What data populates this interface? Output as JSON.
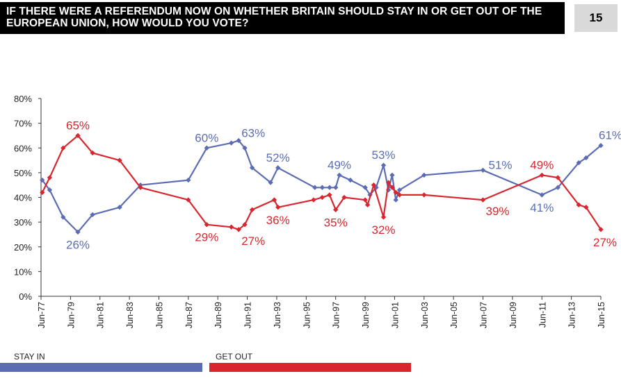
{
  "header": {
    "title": "IF THERE WERE A REFERENDUM NOW ON WHETHER BRITAIN SHOULD STAY IN OR GET OUT OF THE EUROPEAN UNION, HOW WOULD YOU VOTE?",
    "page_number": "15"
  },
  "legend": {
    "stay_in": "STAY IN",
    "get_out": "GET OUT"
  },
  "colors": {
    "stay_in": "#5b6cb4",
    "get_out": "#d9262e"
  },
  "chart_data": {
    "type": "line",
    "y_ticks": [
      "0%",
      "10%",
      "20%",
      "30%",
      "40%",
      "50%",
      "60%",
      "70%",
      "80%"
    ],
    "ylim": [
      0,
      80
    ],
    "x_ticks": [
      "Jun-77",
      "Jun-79",
      "Jun-81",
      "Jun-83",
      "Jun-85",
      "Jun-87",
      "Jun-89",
      "Jun-91",
      "Jun-93",
      "Jun-95",
      "Jun-97",
      "Jun-99",
      "Jun-01",
      "Jun-03",
      "Jun-05",
      "Jun-07",
      "Jun-09",
      "Jun-11",
      "Jun-13",
      "Jun-15"
    ],
    "xlim": [
      "1977-06",
      "2015-06"
    ],
    "grid": false,
    "legend_position": "bottom",
    "series": [
      {
        "name": "STAY IN",
        "points": [
          [
            "1977-07",
            47
          ],
          [
            "1978-01",
            43
          ],
          [
            "1978-12",
            32
          ],
          [
            "1979-12",
            26
          ],
          [
            "1980-12",
            33
          ],
          [
            "1982-10",
            36
          ],
          [
            "1984-03",
            45
          ],
          [
            "1987-06",
            47
          ],
          [
            "1988-09",
            60
          ],
          [
            "1990-05",
            62
          ],
          [
            "1990-11",
            63
          ],
          [
            "1991-04",
            60
          ],
          [
            "1991-10",
            52
          ],
          [
            "1993-01",
            46
          ],
          [
            "1993-07",
            52
          ],
          [
            "1996-01",
            44
          ],
          [
            "1996-07",
            44
          ],
          [
            "1997-01",
            44
          ],
          [
            "1997-06",
            44
          ],
          [
            "1997-09",
            49
          ],
          [
            "1998-06",
            47
          ],
          [
            "1999-06",
            44
          ],
          [
            "1999-10",
            41
          ],
          [
            "2000-03",
            44
          ],
          [
            "2000-09",
            53
          ],
          [
            "2001-01",
            43
          ],
          [
            "2001-04",
            49
          ],
          [
            "2001-07",
            39
          ],
          [
            "2001-10",
            43
          ],
          [
            "2003-06",
            49
          ],
          [
            "2007-06",
            51
          ],
          [
            "2011-06",
            41
          ],
          [
            "2012-07",
            44
          ],
          [
            "2013-12",
            54
          ],
          [
            "2014-06",
            56
          ],
          [
            "2015-06",
            61
          ]
        ],
        "labels": [
          {
            "date": "1979-12",
            "text": "26%",
            "pos": "below"
          },
          {
            "date": "1988-09",
            "text": "60%",
            "pos": "above"
          },
          {
            "date": "1990-11",
            "text": "63%",
            "pos": "above-right"
          },
          {
            "date": "1993-07",
            "text": "52%",
            "pos": "above"
          },
          {
            "date": "1997-09",
            "text": "49%",
            "pos": "above"
          },
          {
            "date": "2000-09",
            "text": "53%",
            "pos": "above"
          },
          {
            "date": "2007-06",
            "text": "51%",
            "pos": "right"
          },
          {
            "date": "2011-06",
            "text": "41%",
            "pos": "below"
          },
          {
            "date": "2015-06",
            "text": "61%",
            "pos": "above"
          }
        ]
      },
      {
        "name": "GET OUT",
        "points": [
          [
            "1977-07",
            42
          ],
          [
            "1978-01",
            48
          ],
          [
            "1978-12",
            60
          ],
          [
            "1979-12",
            65
          ],
          [
            "1980-12",
            58
          ],
          [
            "1982-10",
            55
          ],
          [
            "1984-03",
            44
          ],
          [
            "1987-06",
            39
          ],
          [
            "1988-09",
            29
          ],
          [
            "1990-05",
            28
          ],
          [
            "1990-11",
            27
          ],
          [
            "1991-04",
            29
          ],
          [
            "1991-10",
            35
          ],
          [
            "1993-04",
            39
          ],
          [
            "1993-07",
            36
          ],
          [
            "1995-12",
            39
          ],
          [
            "1996-07",
            40
          ],
          [
            "1997-01",
            41
          ],
          [
            "1997-06",
            35
          ],
          [
            "1998-01",
            40
          ],
          [
            "1999-06",
            39
          ],
          [
            "1999-08",
            37
          ],
          [
            "2000-01",
            45
          ],
          [
            "2000-09",
            32
          ],
          [
            "2001-01",
            46
          ],
          [
            "2001-04",
            44
          ],
          [
            "2001-07",
            42
          ],
          [
            "2001-10",
            41
          ],
          [
            "2003-06",
            41
          ],
          [
            "2007-06",
            39
          ],
          [
            "2011-06",
            49
          ],
          [
            "2012-07",
            48
          ],
          [
            "2013-12",
            37
          ],
          [
            "2014-06",
            36
          ],
          [
            "2015-06",
            27
          ]
        ],
        "labels": [
          {
            "date": "1979-12",
            "text": "65%",
            "pos": "above"
          },
          {
            "date": "1988-09",
            "text": "29%",
            "pos": "below"
          },
          {
            "date": "1990-11",
            "text": "27%",
            "pos": "below-right"
          },
          {
            "date": "1993-07",
            "text": "36%",
            "pos": "below"
          },
          {
            "date": "1997-06",
            "text": "35%",
            "pos": "below"
          },
          {
            "date": "2000-09",
            "text": "32%",
            "pos": "below"
          },
          {
            "date": "2007-06",
            "text": "39%",
            "pos": "below-right"
          },
          {
            "date": "2011-06",
            "text": "49%",
            "pos": "above"
          },
          {
            "date": "2015-06",
            "text": "27%",
            "pos": "below"
          }
        ]
      }
    ]
  }
}
